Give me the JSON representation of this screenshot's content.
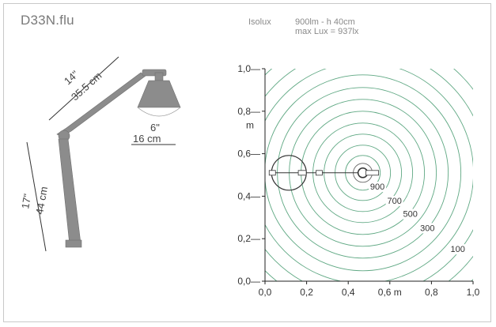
{
  "product": {
    "name": "D33N.flu"
  },
  "header": {
    "mode": "Isolux",
    "spec_line1": "900lm - h 40cm",
    "spec_line2": "max Lux = 937lx"
  },
  "lamp_dims": {
    "arm_in": "14\"",
    "arm_cm": "35.5 cm",
    "head_in": "6\"",
    "head_cm": "16 cm",
    "base_in": "17\"",
    "base_cm": "44 cm"
  },
  "colors": {
    "contour": "#5fa883",
    "axis": "#222222",
    "lamp": "#8c8c8c"
  },
  "chart_data": {
    "type": "contour",
    "xlim": [
      0,
      1.0
    ],
    "ylim": [
      0,
      1.0
    ],
    "x_ticks": [
      "0,0",
      "0,2",
      "0,4",
      "0,6 m",
      "0,8",
      "1,0"
    ],
    "y_ticks": [
      "0,0",
      "0,2",
      "0,4",
      "0,6",
      "0,8",
      "1,0"
    ],
    "y_unit": "m",
    "center": [
      0.47,
      0.51
    ],
    "levels": [
      {
        "lux": 900,
        "label": "900"
      },
      {
        "lux": 700,
        "label": "700"
      },
      {
        "lux": 500,
        "label": "500"
      },
      {
        "lux": 300,
        "label": "300"
      },
      {
        "lux": 100,
        "label": "100"
      }
    ]
  }
}
